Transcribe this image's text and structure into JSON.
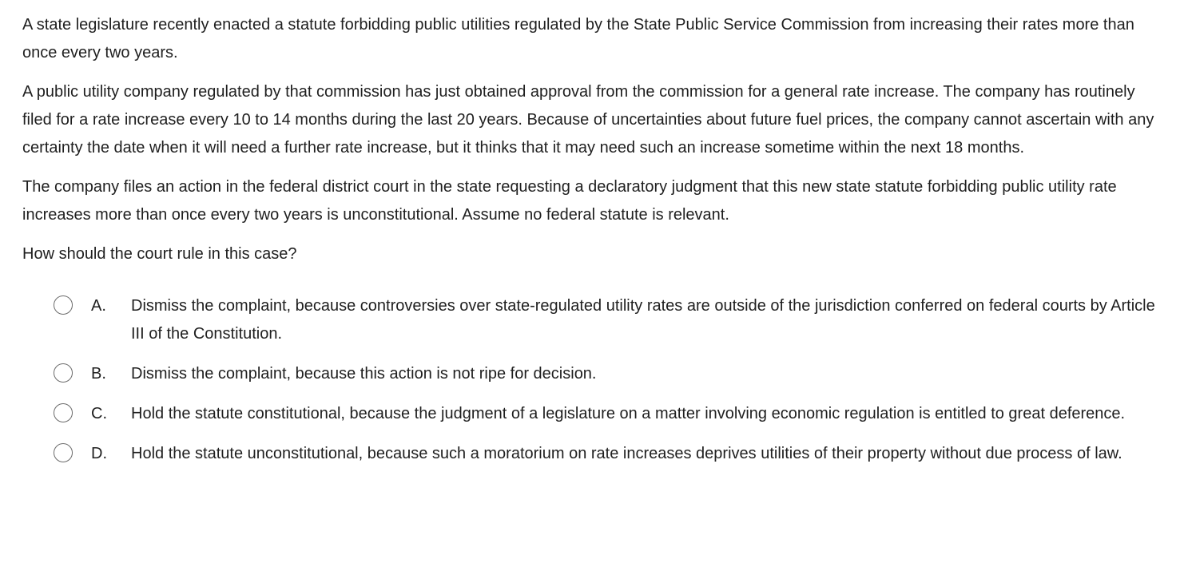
{
  "stem": [
    "A state legislature recently enacted a statute forbidding public utilities regulated by the State Public Service Commission from increasing their rates more than once every two years.",
    "A public utility company regulated by that commission has just obtained approval from the commission for a general rate increase.  The company has routinely filed for a rate increase every 10 to 14 months during the last 20 years.  Because of uncertainties about future fuel prices, the company cannot ascertain with any certainty the date when it will need a further rate increase, but it thinks that it may need such an increase sometime within the next 18 months.",
    "The company files an action in the federal district court in the state requesting a declaratory judgment that this new state statute forbidding public utility rate increases more than once every two years is unconstitutional.  Assume no federal statute is relevant."
  ],
  "prompt": "How should the court rule in this case?",
  "options": [
    {
      "letter": "A.",
      "text": "Dismiss the complaint, because controversies over state-regulated utility rates are outside of the jurisdiction conferred on federal courts by Article III of the Constitution.",
      "selected": false
    },
    {
      "letter": "B.",
      "text": "Dismiss the complaint, because this action is not ripe for decision.",
      "selected": false
    },
    {
      "letter": "C.",
      "text": "Hold the statute constitutional, because the judgment of a legislature on a matter involving economic regulation is entitled to great deference.",
      "selected": false
    },
    {
      "letter": "D.",
      "text": "Hold the statute unconstitutional, because such a moratorium on rate increases deprives utilities of their property without due process of law.",
      "selected": false
    }
  ]
}
